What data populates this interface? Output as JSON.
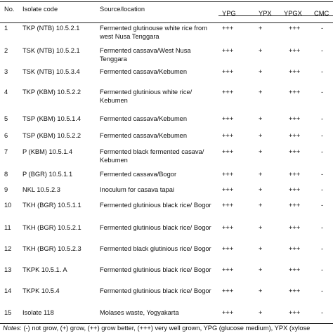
{
  "headers": {
    "no": "No.",
    "isolate_code": "Isolate code",
    "source": "Source/location",
    "ypg": "YPG",
    "ypx": "YPX",
    "ypgx": "YPGX",
    "cmc": "CMC"
  },
  "rows": [
    {
      "no": "1",
      "code": "TKP (NTB) 10.5.2.1",
      "source": "Fermented glutinouse white rice from west Nusa Tenggara",
      "ypg": "+++",
      "ypx": "+",
      "ypgx": "+++",
      "cmc": "-"
    },
    {
      "no": "2",
      "code": "TSK (NTB) 10.5.2.1",
      "source": "Fermented cassava/West Nusa Tenggara",
      "ypg": "+++",
      "ypx": "+",
      "ypgx": "+++",
      "cmc": "-"
    },
    {
      "no": "3",
      "code": "TSK (NTB) 10.5.3.4",
      "source": "Fermented cassava/Kebumen",
      "ypg": "+++",
      "ypx": "+",
      "ypgx": "+++",
      "cmc": "-"
    },
    {
      "no": "4",
      "code": "TKP (KBM) 10.5.2.2",
      "source": "Fermented glutinious white rice/ Kebumen",
      "ypg": "+++",
      "ypx": "+",
      "ypgx": "+++",
      "cmc": "-"
    },
    {
      "no": "5",
      "code": "TSP (KBM) 10.5.1.4",
      "source": "Fermented cassava/Kebumen",
      "ypg": "+++",
      "ypx": "+",
      "ypgx": "+++",
      "cmc": "-"
    },
    {
      "no": "6",
      "code": "TSP (KBM) 10.5.2.2",
      "source": "Fermented cassava/Kebumen",
      "ypg": "+++",
      "ypx": "+",
      "ypgx": "+++",
      "cmc": "-"
    },
    {
      "no": "7",
      "code": "P (KBM) 10.5.1.4",
      "source": "Fermented black fermented casava/ Kebumen",
      "ypg": "+++",
      "ypx": "+",
      "ypgx": "+++",
      "cmc": "-"
    },
    {
      "no": "8",
      "code": "P (BGR) 10.5.1.1",
      "source": "Fermented cassava/Bogor",
      "ypg": "+++",
      "ypx": "+",
      "ypgx": "+++",
      "cmc": "-"
    },
    {
      "no": "9",
      "code": "NKL 10.5.2.3",
      "source": "Inoculum for casava tapai",
      "ypg": "+++",
      "ypx": "+",
      "ypgx": "+++",
      "cmc": "-"
    },
    {
      "no": "10",
      "code": "TKH (BGR) 10.5.1.1",
      "source": "Fermented glutinious black rice/ Bogor",
      "ypg": "+++",
      "ypx": "+",
      "ypgx": "+++",
      "cmc": "-"
    },
    {
      "no": "11",
      "code": "TKH (BGR) 10.5.2.1",
      "source": "Fermented glutinious black rice/ Bogor",
      "ypg": "+++",
      "ypx": "+",
      "ypgx": "+++",
      "cmc": "-"
    },
    {
      "no": "12",
      "code": "TKH (BGR) 10.5.2.3",
      "source": "Fermented black glutinious rice/ Bogor",
      "ypg": "+++",
      "ypx": "+",
      "ypgx": "+++",
      "cmc": "-"
    },
    {
      "no": "13",
      "code": "TKPK 10.5.1. A",
      "source": "Fermented glutinious black rice/ Bogor",
      "ypg": "+++",
      "ypx": "+",
      "ypgx": "+++",
      "cmc": "-"
    },
    {
      "no": "14",
      "code": "TKPK 10.5.4",
      "source": "Fermented glutinious black rice/ Bogor",
      "ypg": "+++",
      "ypx": "+",
      "ypgx": "+++",
      "cmc": "-"
    },
    {
      "no": "15",
      "code": "Isolate 118",
      "source": "Molases waste, Yogyakarta",
      "ypg": "+++",
      "ypx": "+",
      "ypgx": "+++",
      "cmc": "-"
    }
  ],
  "notes": {
    "label": "Notes",
    "text": ": (-) not grow, (+) grow, (++) grow better, (+++) very well grown, YPG (glucose medium), YPX (xylose"
  }
}
